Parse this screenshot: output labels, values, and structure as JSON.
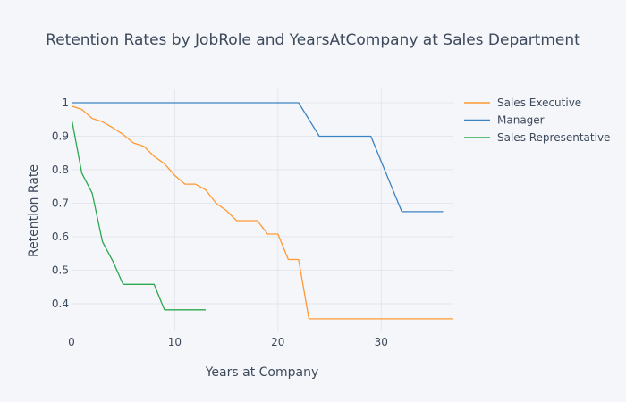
{
  "chart_data": {
    "type": "line",
    "title": "Retention Rates by JobRole and YearsAtCompany at Sales Department",
    "xlabel": "Years at Company",
    "ylabel": "Retention Rate",
    "xlim": [
      0,
      37
    ],
    "ylim": [
      0.32,
      1.04
    ],
    "x_ticks": [
      0,
      10,
      20,
      30
    ],
    "y_ticks": [
      0.4,
      0.5,
      0.6,
      0.7,
      0.8,
      0.9,
      1
    ],
    "grid": true,
    "legend_position": "top-right",
    "series": [
      {
        "name": "Sales Executive",
        "color": "#ff9933",
        "x": [
          0,
          1,
          2,
          3,
          4,
          5,
          6,
          7,
          8,
          9,
          10,
          11,
          12,
          13,
          14,
          15,
          16,
          17,
          18,
          19,
          20,
          21,
          22,
          23,
          24,
          25,
          26,
          27,
          28,
          29,
          30,
          31,
          32,
          33,
          34,
          35,
          36,
          37
        ],
        "y": [
          0.99,
          0.98,
          0.953,
          0.943,
          0.925,
          0.905,
          0.88,
          0.87,
          0.84,
          0.818,
          0.783,
          0.757,
          0.757,
          0.74,
          0.7,
          0.678,
          0.648,
          0.648,
          0.648,
          0.608,
          0.608,
          0.532,
          0.532,
          0.355,
          0.355,
          0.355,
          0.355,
          0.355,
          0.355,
          0.355,
          0.355,
          0.355,
          0.355,
          0.355,
          0.355,
          0.355,
          0.355,
          0.355
        ]
      },
      {
        "name": "Manager",
        "color": "#3d82c2",
        "x": [
          0,
          22,
          24,
          29,
          32,
          36
        ],
        "y": [
          1,
          1,
          0.9,
          0.9,
          0.675,
          0.675
        ]
      },
      {
        "name": "Sales Representative",
        "color": "#2ca84e",
        "x": [
          0,
          1,
          2,
          3,
          4,
          5,
          6,
          7,
          8,
          9,
          10,
          11,
          12,
          13
        ],
        "y": [
          0.953,
          0.79,
          0.73,
          0.585,
          0.527,
          0.458,
          0.458,
          0.458,
          0.458,
          0.382,
          0.382,
          0.382,
          0.382,
          0.382
        ]
      }
    ]
  }
}
